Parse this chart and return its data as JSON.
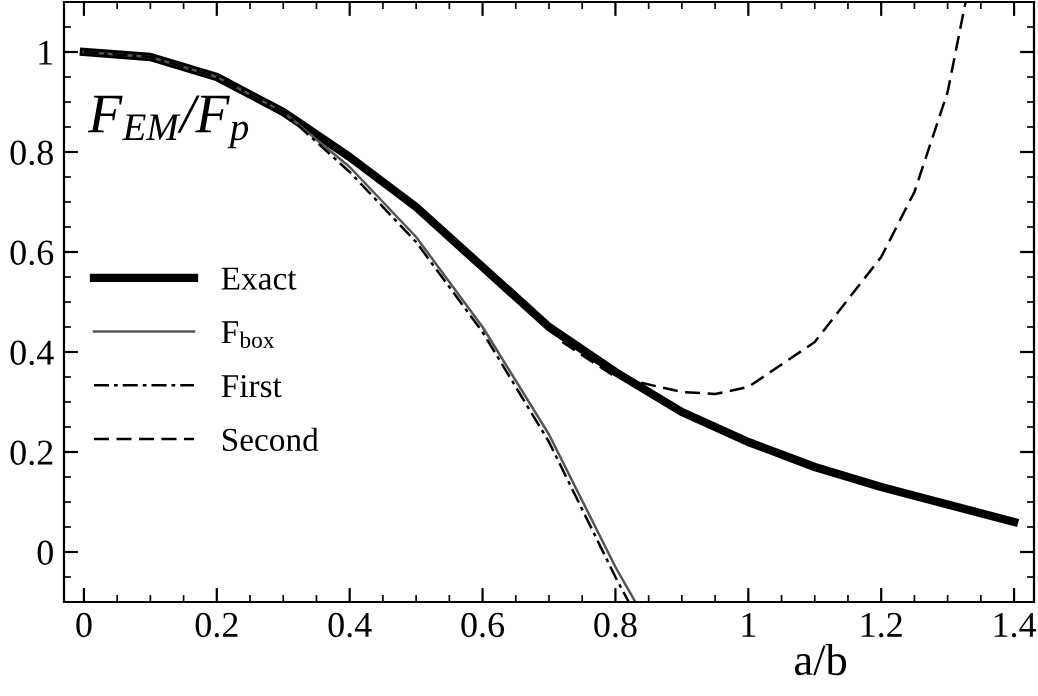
{
  "chart_data": {
    "type": "line",
    "xlabel": "a/b",
    "ylabel": "F$_{EM}$/F$_{p}$",
    "xlim": [
      -0.03,
      1.43
    ],
    "ylim": [
      -0.1,
      1.1
    ],
    "xticks": [
      0,
      0.2,
      0.4,
      0.6,
      0.8,
      {
        "value": 1,
        "label": "1"
      },
      1.2,
      1.4
    ],
    "yticks": [
      0,
      0.2,
      0.4,
      0.6,
      0.8,
      {
        "value": 1,
        "label": "1"
      }
    ],
    "legend": "left",
    "grid": false,
    "series": [
      {
        "name": "Exact",
        "color": "#000000",
        "line_style": "solid",
        "x": [
          0,
          0.1,
          0.2,
          0.3,
          0.4,
          0.5,
          0.6,
          0.7,
          0.8,
          0.9,
          1.0,
          1.1,
          1.2,
          1.3,
          1.4
        ],
        "values": [
          1,
          0.99,
          0.95,
          0.88,
          0.79,
          0.69,
          0.57,
          0.45,
          0.36,
          0.28,
          0.22,
          0.17,
          0.13,
          0.095,
          0.06
        ]
      },
      {
        "name": "F$_{box}$",
        "color": "#555555",
        "line_style": "solid",
        "x": [
          0,
          0.1,
          0.2,
          0.3,
          0.4,
          0.5,
          0.6,
          0.7,
          0.8,
          0.83
        ],
        "values": [
          1,
          0.99,
          0.95,
          0.88,
          0.77,
          0.63,
          0.45,
          0.235,
          -0.03,
          -0.1
        ]
      },
      {
        "name": "First",
        "color": "#000000",
        "line_style": "dashdot",
        "x": [
          0,
          0.1,
          0.2,
          0.3,
          0.4,
          0.5,
          0.6,
          0.7,
          0.8,
          0.82
        ],
        "values": [
          1,
          0.99,
          0.95,
          0.88,
          0.76,
          0.62,
          0.44,
          0.22,
          -0.05,
          -0.1
        ]
      },
      {
        "name": "Second",
        "color": "#000000",
        "line_style": "dashed",
        "x": [
          0.72,
          0.8,
          0.9,
          0.95,
          1.0,
          1.1,
          1.2,
          1.25,
          1.3,
          1.327
        ],
        "values": [
          0.42,
          0.35,
          0.32,
          0.316,
          0.33,
          0.42,
          0.59,
          0.72,
          0.92,
          1.1
        ]
      }
    ]
  }
}
